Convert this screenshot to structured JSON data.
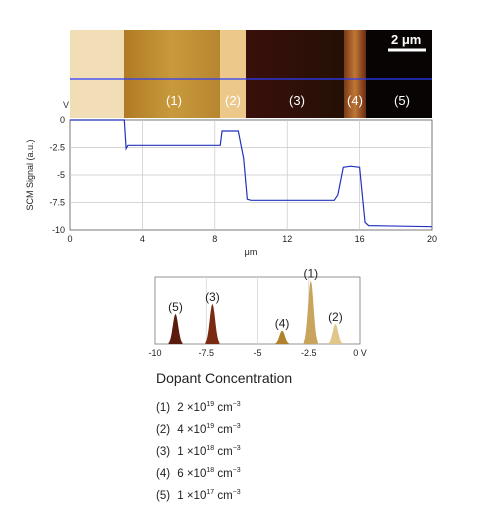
{
  "image": {
    "band_labels": [
      "(1)",
      "(2)",
      "(3)",
      "(4)",
      "(5)"
    ],
    "scale_bar": "2 μm",
    "left_label": "V",
    "band_colors": [
      "#f1ddb6",
      "#c0902f",
      "#ecc98a",
      "#2f0b08",
      "#b06a2a",
      "#090404"
    ]
  },
  "chart_data": [
    {
      "type": "line",
      "ylabel": "SCM Signal (a.u.)",
      "xlabel": "μm",
      "xlim": [
        0,
        20
      ],
      "ylim": [
        -10,
        0
      ],
      "xticks": [
        0,
        4,
        8,
        12,
        16,
        20
      ],
      "xtick_labels": [
        "0",
        "4",
        "8",
        "12",
        "16",
        "20"
      ],
      "yticks": [
        0,
        -2.5,
        -5,
        -7.5,
        -10
      ],
      "ytick_labels": [
        "0",
        "-2.5",
        "-5",
        "-7.5",
        "-10"
      ],
      "grid": true,
      "line_color": "#2233bb",
      "series": [
        {
          "x": [
            0,
            3.0,
            3.1,
            3.2,
            8.3,
            8.4,
            9.3,
            9.6,
            9.8,
            10.0,
            14.6,
            14.8,
            15.1,
            15.5,
            16.0,
            16.3,
            16.5,
            20
          ],
          "y": [
            0,
            0,
            -2.6,
            -2.3,
            -2.3,
            -1.0,
            -1.0,
            -3.5,
            -7.2,
            -7.3,
            -7.3,
            -6.8,
            -4.3,
            -4.2,
            -4.3,
            -9.3,
            -9.6,
            -9.7
          ]
        }
      ]
    },
    {
      "type": "area",
      "xlabel": "",
      "ylabel": "",
      "xlim": [
        -10,
        0
      ],
      "xticks": [
        -10,
        -7.5,
        -5,
        -2.5,
        0
      ],
      "xtick_labels": [
        "-10",
        "-7.5",
        "-5",
        "-2.5",
        "0 V"
      ],
      "grid": true,
      "peaks": [
        {
          "label": "(5)",
          "center": -9.0,
          "height": 0.45,
          "color": "#5a1a0e"
        },
        {
          "label": "(3)",
          "center": -7.2,
          "height": 0.6,
          "color": "#7a2a10"
        },
        {
          "label": "(4)",
          "center": -3.8,
          "height": 0.2,
          "color": "#b0802a"
        },
        {
          "label": "(1)",
          "center": -2.4,
          "height": 0.95,
          "color": "#c9a45c"
        },
        {
          "label": "(2)",
          "center": -1.2,
          "height": 0.3,
          "color": "#e0c68a"
        }
      ]
    }
  ],
  "legend": {
    "title": "Dopant Concentration",
    "items": [
      {
        "index": "(1)",
        "mantissa": "2 ×10",
        "exponent": "19",
        "unit": "cm",
        "unit_exp": "−3"
      },
      {
        "index": "(2)",
        "mantissa": "4 ×10",
        "exponent": "19",
        "unit": "cm",
        "unit_exp": "−3"
      },
      {
        "index": "(3)",
        "mantissa": "1 ×10",
        "exponent": "18",
        "unit": "cm",
        "unit_exp": "−3"
      },
      {
        "index": "(4)",
        "mantissa": "6 ×10",
        "exponent": "18",
        "unit": "cm",
        "unit_exp": "−3"
      },
      {
        "index": "(5)",
        "mantissa": "1 ×10",
        "exponent": "17",
        "unit": "cm",
        "unit_exp": "−3"
      }
    ]
  }
}
